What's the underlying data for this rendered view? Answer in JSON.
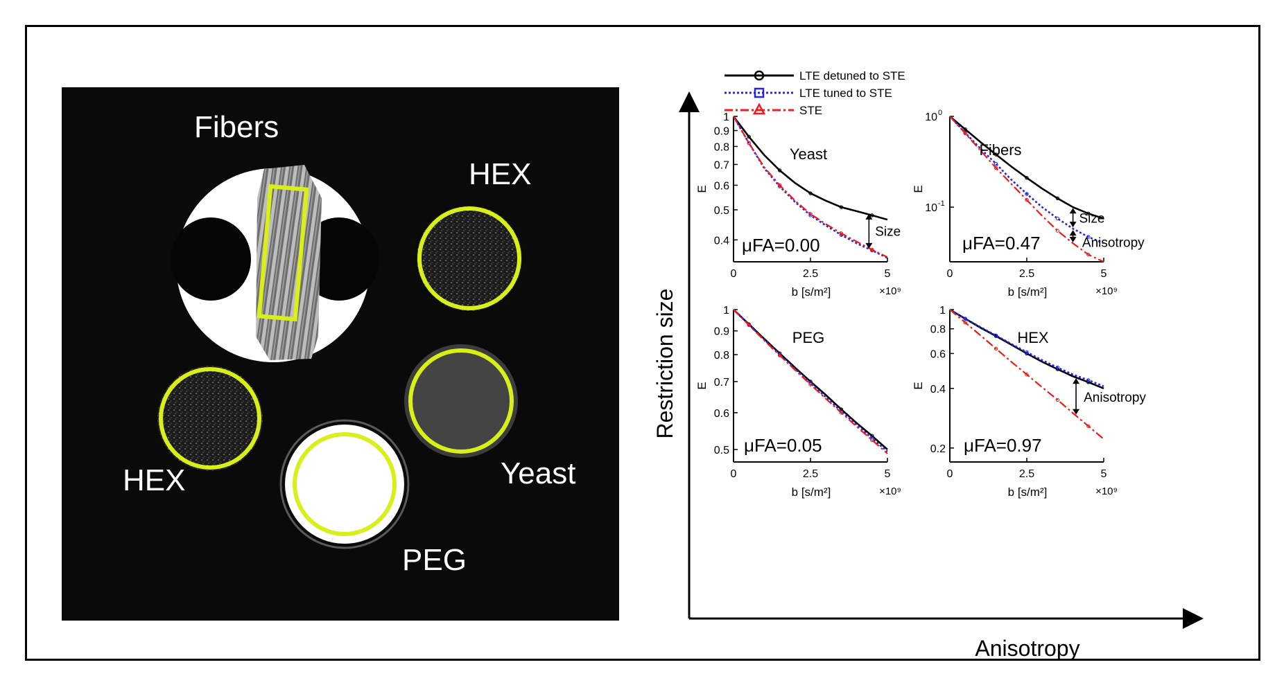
{
  "mri": {
    "labels": {
      "fibers": "Fibers",
      "hex_top": "HEX",
      "hex_left": "HEX",
      "yeast": "Yeast",
      "peg": "PEG"
    },
    "colors": {
      "roi": "#d9ef1a",
      "background": "#0a0a0a",
      "label": "#ffffff"
    }
  },
  "legend": {
    "entries": [
      {
        "label": "LTE detuned to STE",
        "color": "#000000",
        "marker": "circle",
        "line": "solid"
      },
      {
        "label": "LTE tuned to STE",
        "color": "#1f24ee",
        "marker": "square",
        "line": "dotted"
      },
      {
        "label": "STE",
        "color": "#ee1c1c",
        "marker": "triangle",
        "line": "dash-dot"
      }
    ]
  },
  "axes": {
    "y_arrow_label": "Restriction size",
    "x_arrow_label": "Anisotropy"
  },
  "chart_data": [
    {
      "type": "line",
      "panel": "yeast",
      "title": "Yeast",
      "annotation": "μFA=0.00",
      "arrow_labels": [
        "Size"
      ],
      "xlabel": "b [s/m²]",
      "x_multiplier": "×10⁹",
      "ylabel": "E",
      "xlim": [
        0,
        5
      ],
      "ylim": [
        0.34,
        1.0
      ],
      "yscale": "log",
      "xticks": [
        "0",
        "2.5",
        "5"
      ],
      "yticks": [
        {
          "value": 1.0,
          "label": "1"
        },
        {
          "value": 0.9,
          "label": "0.9"
        },
        {
          "value": 0.8,
          "label": "0.8"
        },
        {
          "value": 0.7,
          "label": "0.7"
        },
        {
          "value": 0.6,
          "label": "0.6"
        },
        {
          "value": 0.5,
          "label": "0.5"
        },
        {
          "value": 0.4,
          "label": "0.4"
        }
      ],
      "x": [
        0,
        0.5,
        1.0,
        1.5,
        2.0,
        2.5,
        3.0,
        3.5,
        4.0,
        4.5,
        5.0
      ],
      "series": [
        {
          "name": "LTE detuned to STE",
          "values": [
            1.0,
            0.86,
            0.75,
            0.67,
            0.61,
            0.565,
            0.535,
            0.51,
            0.495,
            0.48,
            0.465
          ]
        },
        {
          "name": "LTE tuned to STE",
          "values": [
            1.0,
            0.82,
            0.68,
            0.595,
            0.53,
            0.48,
            0.445,
            0.415,
            0.39,
            0.37,
            0.35
          ]
        },
        {
          "name": "STE",
          "values": [
            1.0,
            0.82,
            0.685,
            0.6,
            0.535,
            0.485,
            0.45,
            0.42,
            0.395,
            0.372,
            0.352
          ]
        }
      ]
    },
    {
      "type": "line",
      "panel": "fibers",
      "title": "Fibers",
      "annotation": "μFA=0.47",
      "arrow_labels": [
        "Size",
        "Anisotropy"
      ],
      "xlabel": "b [s/m²]",
      "x_multiplier": "×10⁹",
      "ylabel": "E",
      "xlim": [
        0,
        5
      ],
      "ylim": [
        0.025,
        1.0
      ],
      "yscale": "log",
      "xticks": [
        "0",
        "2.5",
        "5"
      ],
      "yticks": [
        {
          "value": 1.0,
          "label": "10",
          "exp": "0"
        },
        {
          "value": 0.1,
          "label": "10",
          "exp": "-1"
        }
      ],
      "x": [
        0,
        0.5,
        1.0,
        1.5,
        2.0,
        2.5,
        3.0,
        3.5,
        4.0,
        4.5,
        5.0
      ],
      "series": [
        {
          "name": "LTE detuned to STE",
          "values": [
            1.0,
            0.72,
            0.52,
            0.38,
            0.28,
            0.21,
            0.16,
            0.125,
            0.1,
            0.085,
            0.075
          ]
        },
        {
          "name": "LTE tuned to STE",
          "values": [
            1.0,
            0.66,
            0.44,
            0.3,
            0.2,
            0.14,
            0.1,
            0.075,
            0.058,
            0.047,
            0.04
          ]
        },
        {
          "name": "STE",
          "values": [
            1.0,
            0.65,
            0.42,
            0.27,
            0.18,
            0.12,
            0.08,
            0.055,
            0.04,
            0.03,
            0.025
          ]
        }
      ]
    },
    {
      "type": "line",
      "panel": "peg",
      "title": "PEG",
      "annotation": "μFA=0.05",
      "arrow_labels": [],
      "xlabel": "b [s/m²]",
      "x_multiplier": "×10⁹",
      "ylabel": "E",
      "xlim": [
        0,
        5
      ],
      "ylim": [
        0.47,
        1.0
      ],
      "yscale": "log",
      "xticks": [
        "0",
        "2.5",
        "5"
      ],
      "yticks": [
        {
          "value": 1.0,
          "label": "1"
        },
        {
          "value": 0.9,
          "label": "0.9"
        },
        {
          "value": 0.8,
          "label": "0.8"
        },
        {
          "value": 0.7,
          "label": "0.7"
        },
        {
          "value": 0.6,
          "label": "0.6"
        },
        {
          "value": 0.5,
          "label": "0.5"
        }
      ],
      "x": [
        0,
        0.5,
        1.0,
        1.5,
        2.0,
        2.5,
        3.0,
        3.5,
        4.0,
        4.5,
        5.0
      ],
      "series": [
        {
          "name": "LTE detuned to STE",
          "values": [
            1.0,
            0.93,
            0.865,
            0.805,
            0.75,
            0.7,
            0.655,
            0.61,
            0.57,
            0.535,
            0.5
          ]
        },
        {
          "name": "LTE tuned to STE",
          "values": [
            1.0,
            0.928,
            0.862,
            0.8,
            0.745,
            0.695,
            0.648,
            0.604,
            0.565,
            0.528,
            0.495
          ]
        },
        {
          "name": "STE",
          "values": [
            1.0,
            0.926,
            0.858,
            0.797,
            0.741,
            0.69,
            0.643,
            0.6,
            0.56,
            0.524,
            0.49
          ]
        }
      ]
    },
    {
      "type": "line",
      "panel": "hex",
      "title": "HEX",
      "annotation": "μFA=0.97",
      "arrow_labels": [
        "Anisotropy"
      ],
      "xlabel": "b [s/m²]",
      "x_multiplier": "×10⁹",
      "ylabel": "E",
      "xlim": [
        0,
        5
      ],
      "ylim": [
        0.17,
        1.0
      ],
      "yscale": "log",
      "xticks": [
        "0",
        "2.5",
        "5"
      ],
      "yticks": [
        {
          "value": 1.0,
          "label": "1"
        },
        {
          "value": 0.8,
          "label": "0.8"
        },
        {
          "value": 0.6,
          "label": "0.6"
        },
        {
          "value": 0.4,
          "label": "0.4"
        },
        {
          "value": 0.2,
          "label": "0.2"
        }
      ],
      "x": [
        0,
        0.5,
        1.0,
        1.5,
        2.0,
        2.5,
        3.0,
        3.5,
        4.0,
        4.5,
        5.0
      ],
      "series": [
        {
          "name": "LTE detuned to STE",
          "values": [
            1.0,
            0.9,
            0.81,
            0.735,
            0.665,
            0.6,
            0.545,
            0.5,
            0.46,
            0.43,
            0.4
          ]
        },
        {
          "name": "LTE tuned to STE",
          "values": [
            1.0,
            0.9,
            0.815,
            0.74,
            0.67,
            0.61,
            0.555,
            0.51,
            0.47,
            0.44,
            0.41
          ]
        },
        {
          "name": "STE",
          "values": [
            1.0,
            0.86,
            0.74,
            0.635,
            0.545,
            0.47,
            0.405,
            0.35,
            0.3,
            0.258,
            0.222
          ]
        }
      ]
    }
  ]
}
